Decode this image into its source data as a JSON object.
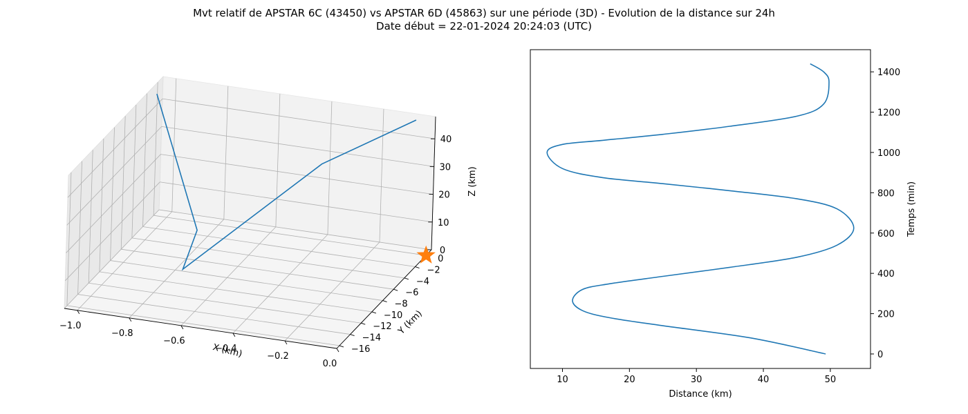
{
  "title_lines": [
    "Mvt relatif de APSTAR 6C (43450) vs APSTAR 6D (45863) sur une période (3D) - Evolution de la distance sur 24h",
    "Date début = 22-01-2024 20:24:03 (UTC)"
  ],
  "colors": {
    "series": "#1f77b4",
    "marker": "#ff7f0e",
    "grid": "#b0b0b0",
    "pane": "#f2f2f2"
  },
  "chart_data": [
    {
      "type": "line3d",
      "xlabel": "X (km)",
      "ylabel": "Y (km)",
      "zlabel": "Z (km)",
      "xlim": [
        -1.05,
        0.0
      ],
      "ylim": [
        -16.5,
        1.0
      ],
      "zlim": [
        0,
        48
      ],
      "x_ticks": [
        -1.0,
        -0.8,
        -0.6,
        -0.4,
        -0.2,
        0.0
      ],
      "x_tick_labels": [
        "−1.0",
        "−0.8",
        "−0.6",
        "−0.4",
        "−0.2",
        "0.0"
      ],
      "y_ticks": [
        0,
        -2,
        -4,
        -6,
        -8,
        -10,
        -12,
        -14,
        -16
      ],
      "y_tick_labels": [
        "0",
        "−2",
        "−4",
        "−6",
        "−8",
        "−10",
        "−12",
        "−14",
        "−16"
      ],
      "z_ticks": [
        0,
        10,
        20,
        30,
        40
      ],
      "z_tick_labels": [
        "0",
        "10",
        "20",
        "30",
        "40"
      ],
      "grid": true,
      "series": [
        {
          "x": [
            -0.05,
            -0.3,
            -0.62,
            -0.62,
            -1.05
          ],
          "y": [
            -0.2,
            -5.5,
            -15.5,
            -13.0,
            -0.1
          ],
          "z": [
            48.5,
            40.0,
            18.0,
            27.0,
            44.0
          ]
        }
      ],
      "marker": {
        "x": 0.0,
        "y": 0.0,
        "z": 0.0,
        "shape": "star"
      }
    },
    {
      "type": "line",
      "xlabel": "Distance (km)",
      "ylabel": "Temps (min)",
      "xlim": [
        5.2,
        56.0
      ],
      "ylim": [
        -72,
        1510
      ],
      "x_ticks": [
        10,
        20,
        30,
        40,
        50
      ],
      "y_ticks": [
        0,
        200,
        400,
        600,
        800,
        1000,
        1200,
        1400
      ],
      "grid": false,
      "y_axis_position": "right",
      "series": [
        {
          "x": [
            49.3,
            38.0,
            25.0,
            17.0,
            13.0,
            11.5,
            13.0,
            17.0,
            25.0,
            35.0,
            45.0,
            51.0,
            53.5,
            51.0,
            45.0,
            35.0,
            25.0,
            16.0,
            10.0,
            7.7,
            10.0,
            16.0,
            25.0,
            35.0,
            45.0,
            49.0,
            49.8,
            49.0,
            47.0
          ],
          "y": [
            0,
            80,
            140,
            180,
            215,
            265,
            320,
            348,
            385,
            430,
            480,
            540,
            625,
            720,
            770,
            810,
            845,
            875,
            920,
            1000,
            1040,
            1060,
            1090,
            1130,
            1180,
            1240,
            1350,
            1400,
            1440
          ]
        }
      ]
    }
  ]
}
